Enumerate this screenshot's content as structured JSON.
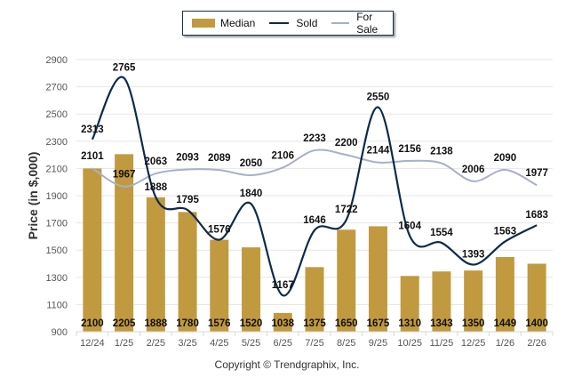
{
  "legend": {
    "median": "Median",
    "sold": "Sold",
    "for_sale": "For Sale"
  },
  "copyright": "Copyright © Trendgraphix, Inc.",
  "colors": {
    "median": "#c19a3f",
    "sold": "#0f2a4a",
    "for_sale": "#a7b0c8",
    "grid": "#e6e6e6"
  },
  "chart_data": {
    "type": "bar",
    "title": "",
    "xlabel": "",
    "ylabel": "Price (in $,000)",
    "ylim": [
      900,
      2900
    ],
    "yticks": [
      900,
      1100,
      1300,
      1500,
      1700,
      1900,
      2100,
      2300,
      2500,
      2700,
      2900
    ],
    "grid": true,
    "legend_position": "top-center",
    "categories": [
      "12/24",
      "1/25",
      "2/25",
      "3/25",
      "4/25",
      "5/25",
      "6/25",
      "7/25",
      "8/25",
      "9/25",
      "10/25",
      "11/25",
      "12/25",
      "1/26",
      "2/26"
    ],
    "series": [
      {
        "name": "Median",
        "type": "bar",
        "values": [
          2100,
          2205,
          1888,
          1780,
          1576,
          1520,
          1038,
          1375,
          1650,
          1675,
          1310,
          1343,
          1350,
          1449,
          1400
        ]
      },
      {
        "name": "Sold",
        "type": "line",
        "values": [
          2313,
          2765,
          1888,
          1795,
          1576,
          1840,
          1167,
          1646,
          1722,
          2550,
          1604,
          1554,
          1393,
          1563,
          1683
        ]
      },
      {
        "name": "For Sale",
        "type": "line",
        "values": [
          2101,
          1967,
          2063,
          2093,
          2089,
          2050,
          2106,
          2233,
          2200,
          2144,
          2156,
          2138,
          2006,
          2090,
          1977
        ]
      }
    ]
  }
}
